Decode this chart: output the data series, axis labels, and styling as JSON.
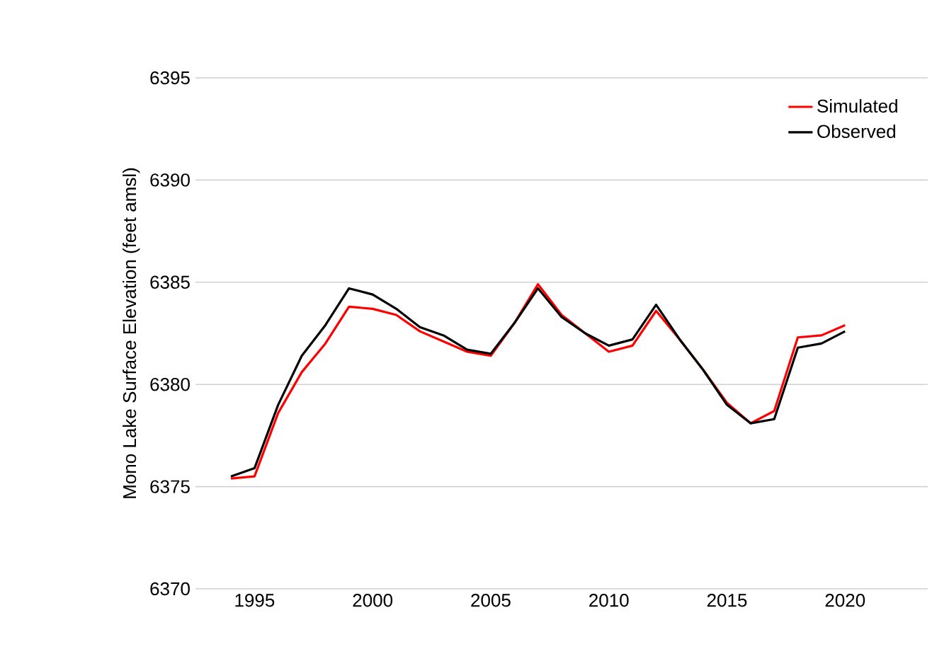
{
  "chart_data": {
    "type": "line",
    "ylabel": "Mono Lake Surface Elevation (feet amsl)",
    "x": [
      1994,
      1995,
      1996,
      1997,
      1998,
      1999,
      2000,
      2001,
      2002,
      2003,
      2004,
      2005,
      2006,
      2007,
      2008,
      2009,
      2010,
      2011,
      2012,
      2013,
      2014,
      2015,
      2016,
      2017,
      2018,
      2019,
      2020
    ],
    "series": [
      {
        "name": "Simulated",
        "color": "#ff0000",
        "values": [
          6375.4,
          6375.5,
          6378.6,
          6380.6,
          6382.0,
          6383.8,
          6383.7,
          6383.4,
          6382.6,
          6382.1,
          6381.6,
          6381.4,
          6383.0,
          6384.9,
          6383.4,
          6382.5,
          6381.6,
          6381.9,
          6383.6,
          6382.2,
          6380.7,
          6379.1,
          6378.1,
          6378.7,
          6382.3,
          6382.4,
          6382.9
        ]
      },
      {
        "name": "Observed",
        "color": "#000000",
        "values": [
          6375.5,
          6375.9,
          6379.0,
          6381.4,
          6382.9,
          6384.7,
          6384.4,
          6383.7,
          6382.8,
          6382.4,
          6381.7,
          6381.5,
          6383.0,
          6384.7,
          6383.3,
          6382.5,
          6381.9,
          6382.2,
          6383.9,
          6382.2,
          6380.7,
          6379.0,
          6378.1,
          6378.3,
          6381.8,
          6382.0,
          6382.6
        ]
      }
    ],
    "xlim": [
      1992.5,
      2023.5
    ],
    "xticks": [
      1995,
      2000,
      2005,
      2010,
      2015,
      2020
    ],
    "ylim": [
      6370,
      6395
    ],
    "yticks": [
      6370,
      6375,
      6380,
      6385,
      6390,
      6395
    ],
    "grid": "y",
    "legend": "top right",
    "marker": "none",
    "line_style": "solid"
  }
}
